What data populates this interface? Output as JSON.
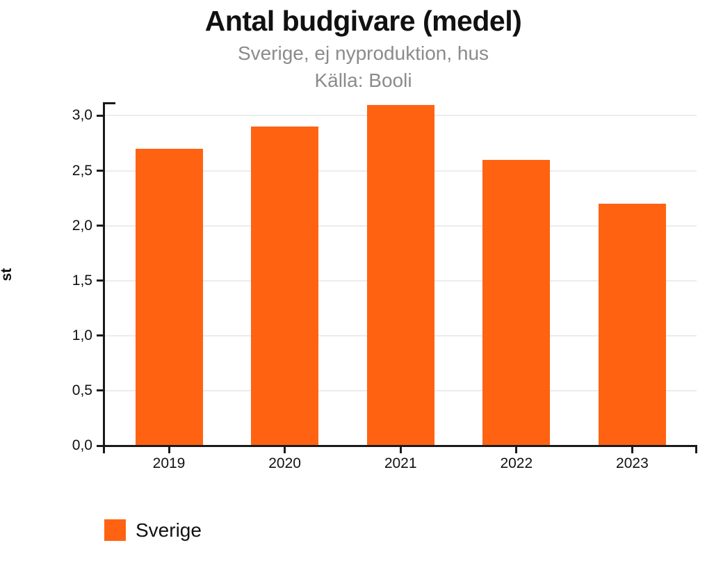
{
  "chart_data": {
    "type": "bar",
    "title": "Antal budgivare (medel)",
    "subtitle": "Sverige, ej nyproduktion, hus",
    "source": "Källa: Booli",
    "categories": [
      "2019",
      "2020",
      "2021",
      "2022",
      "2023"
    ],
    "series": [
      {
        "name": "Sverige",
        "color": "#ff6312",
        "values": [
          2.7,
          2.9,
          3.1,
          2.6,
          2.2
        ]
      }
    ],
    "ylabel": "st",
    "ylim": [
      0,
      3.12
    ],
    "yticks": [
      0,
      0.5,
      1,
      1.5,
      2,
      2.5,
      3
    ],
    "ytick_labels": [
      "0,0",
      "0,5",
      "1,0",
      "1,5",
      "2,0",
      "2,5",
      "3,0"
    ],
    "decimal_separator": ",",
    "grid": true,
    "legend_position": "bottom-left"
  },
  "colors": {
    "bar": "#ff6312",
    "axis": "#1a1a1a",
    "gridline": "#ececec",
    "title_text": "#111111",
    "subtitle_text": "#8b8b8b",
    "tick_text": "#111111"
  }
}
